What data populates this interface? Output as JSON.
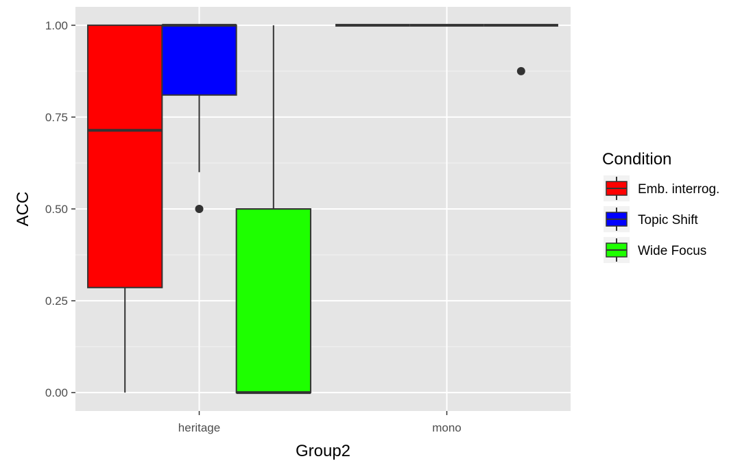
{
  "chart_data": {
    "type": "box",
    "xlabel": "Group2",
    "ylabel": "ACC",
    "ylim": [
      -0.05,
      1.05
    ],
    "y_ticks": [
      "0.00",
      "0.25",
      "0.50",
      "0.75",
      "1.00"
    ],
    "categories": [
      "heritage",
      "mono"
    ],
    "grid": true,
    "legend": {
      "title": "Condition",
      "position": "right"
    },
    "series": [
      {
        "name": "Emb. interrog.",
        "color": "#ff0000",
        "boxes": [
          {
            "category": "heritage",
            "min": 0.0,
            "q1": 0.286,
            "median": 0.714,
            "q3": 1.0,
            "max": 1.0,
            "outliers": []
          },
          {
            "category": "mono",
            "min": 1.0,
            "q1": 1.0,
            "median": 1.0,
            "q3": 1.0,
            "max": 1.0,
            "outliers": []
          }
        ]
      },
      {
        "name": "Topic Shift",
        "color": "#0000ff",
        "boxes": [
          {
            "category": "heritage",
            "min": 0.6,
            "q1": 0.81,
            "median": 1.0,
            "q3": 1.0,
            "max": 1.0,
            "outliers": [
              0.5
            ]
          },
          {
            "category": "mono",
            "min": 1.0,
            "q1": 1.0,
            "median": 1.0,
            "q3": 1.0,
            "max": 1.0,
            "outliers": []
          }
        ]
      },
      {
        "name": "Wide Focus",
        "color": "#1eff00",
        "boxes": [
          {
            "category": "heritage",
            "min": 0.0,
            "q1": 0.0,
            "median": 0.0,
            "q3": 0.5,
            "max": 1.0,
            "outliers": []
          },
          {
            "category": "mono",
            "min": 1.0,
            "q1": 1.0,
            "median": 1.0,
            "q3": 1.0,
            "max": 1.0,
            "outliers": [
              0.875
            ]
          }
        ]
      }
    ]
  }
}
